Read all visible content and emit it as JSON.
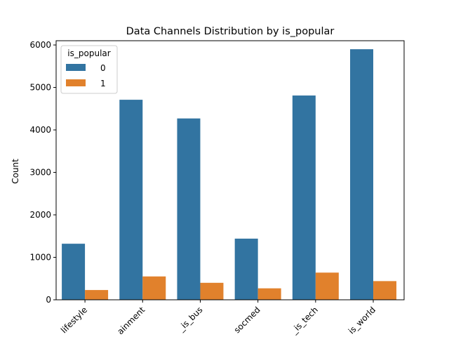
{
  "chart_data": {
    "type": "bar",
    "title": "Data Channels Distribution by is_popular",
    "xlabel": "",
    "ylabel": "Count",
    "categories": [
      "lifestyle",
      "entertainment",
      "_is_bus",
      "socmed",
      "_is_tech",
      "_is_world"
    ],
    "category_tick_labels": [
      "lifestyle",
      "ainment",
      "_is_bus",
      "socmed",
      "_is_tech",
      "is_world"
    ],
    "series": [
      {
        "name": "0",
        "values": [
          1320,
          4710,
          4270,
          1440,
          4810,
          5900
        ],
        "color": "#3274a1"
      },
      {
        "name": "1",
        "values": [
          230,
          550,
          400,
          270,
          640,
          440
        ],
        "color": "#e1812c"
      }
    ],
    "ylim": [
      0,
      6100
    ],
    "yticks": [
      0,
      1000,
      2000,
      3000,
      4000,
      5000,
      6000
    ],
    "grid": false,
    "legend": {
      "title": "is_popular",
      "placement": "top-left"
    }
  }
}
